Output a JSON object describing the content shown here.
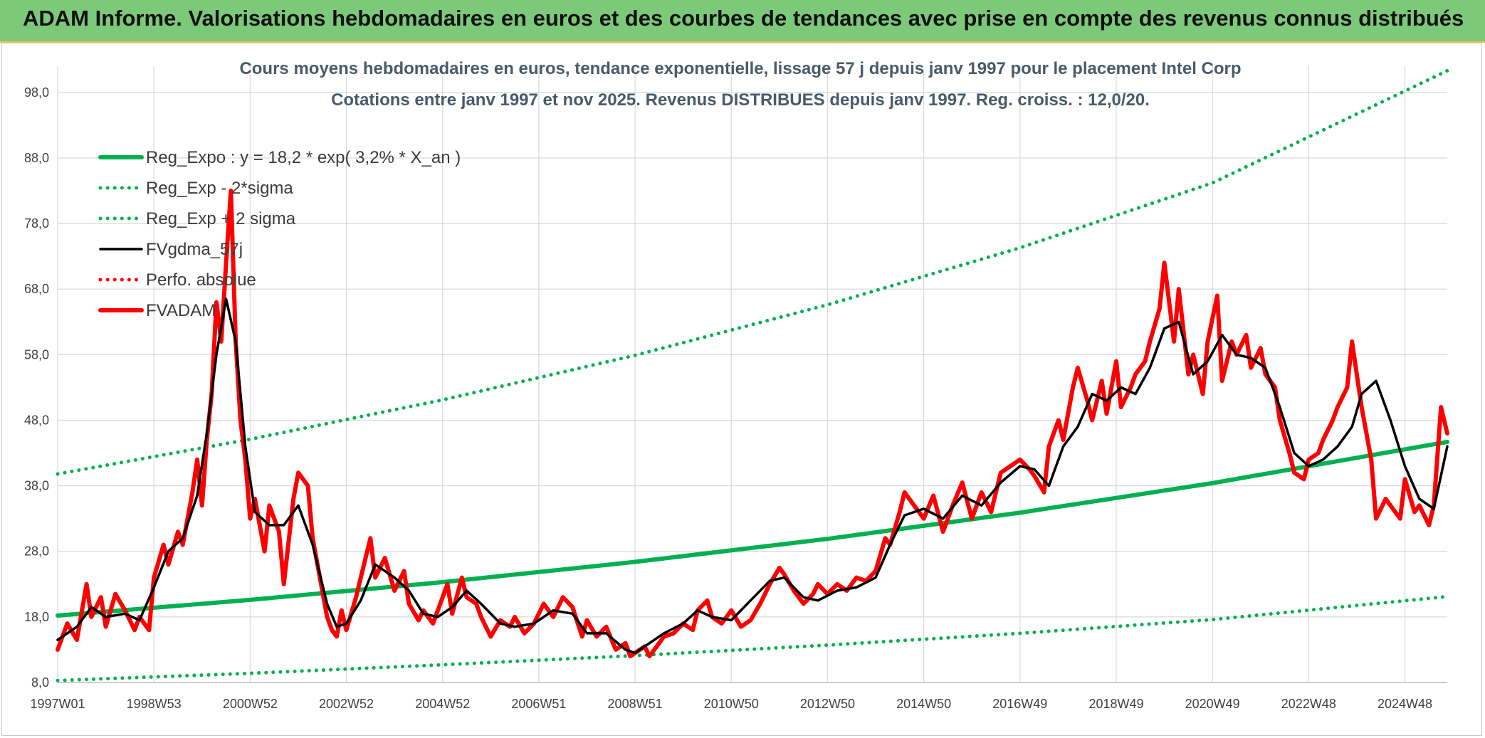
{
  "header": {
    "title": "ADAM Informe. Valorisations hebdomadaires en euros et des courbes de tendances avec prise en compte des revenus connus distribués"
  },
  "chart_data": {
    "type": "line",
    "title": "Cours moyens hebdomadaires en euros, tendance exponentielle, lissage 57 j depuis janv 1997 pour le placement Intel Corp",
    "subtitle": "Cotations entre janv 1997 et nov 2025. Revenus DISTRIBUES depuis janv 1997. Reg. croiss. : 12,0/20.",
    "xlabel": "",
    "ylabel": "",
    "x_range": [
      1997.0,
      2025.88
    ],
    "ylim": [
      8,
      102
    ],
    "y_ticks": [
      8,
      18,
      28,
      38,
      48,
      58,
      68,
      78,
      88,
      98
    ],
    "y_tick_labels": [
      "8,0",
      "18,0",
      "28,0",
      "38,0",
      "48,0",
      "58,0",
      "68,0",
      "78,0",
      "88,0",
      "98,0"
    ],
    "x_tick_labels": [
      "1997W01",
      "1998W53",
      "2000W52",
      "2002W52",
      "2004W52",
      "2006W51",
      "2008W51",
      "2010W50",
      "2012W50",
      "2014W50",
      "2016W49",
      "2018W49",
      "2020W49",
      "2022W48",
      "2024W48"
    ],
    "x_tick_years": [
      1997.0,
      1999.0,
      2001.0,
      2003.0,
      2005.0,
      2007.0,
      2009.0,
      2011.0,
      2013.0,
      2015.0,
      2017.0,
      2019.0,
      2021.0,
      2023.0,
      2025.0
    ],
    "grid": true,
    "legend_position": "top-left",
    "series": [
      {
        "name": "Reg_Expo : y = 18,2 * exp( 3,2% *  X_an )",
        "color": "#00b050",
        "style": "solid-thick",
        "x": [
          1997.0,
          2001.0,
          2005.0,
          2009.0,
          2013.0,
          2017.0,
          2021.0,
          2025.88
        ],
        "values": [
          18.2,
          20.6,
          23.3,
          26.4,
          29.9,
          33.9,
          38.4,
          44.7
        ]
      },
      {
        "name": "Reg_Exp - 2*sigma",
        "color": "#00b050",
        "style": "dotted",
        "x": [
          1997.0,
          2001.0,
          2005.0,
          2009.0,
          2013.0,
          2017.0,
          2021.0,
          2025.88
        ],
        "values": [
          8.3,
          9.4,
          10.7,
          12.1,
          13.7,
          15.5,
          17.6,
          21.1
        ]
      },
      {
        "name": "Reg_Exp + 2 sigma",
        "color": "#00b050",
        "style": "dotted",
        "x": [
          1997.0,
          2001.0,
          2005.0,
          2009.0,
          2013.0,
          2017.0,
          2021.0,
          2025.88
        ],
        "values": [
          39.8,
          45.1,
          51.1,
          57.9,
          65.6,
          74.3,
          84.2,
          101.3
        ]
      },
      {
        "name": "FVgdma_57j",
        "color": "#000000",
        "style": "solid",
        "x": [
          1997.0,
          1997.4,
          1997.7,
          1998.0,
          1998.4,
          1998.7,
          1999.0,
          1999.3,
          1999.6,
          1999.9,
          2000.1,
          2000.3,
          2000.5,
          2000.7,
          2000.9,
          2001.1,
          2001.4,
          2001.7,
          2002.0,
          2002.3,
          2002.6,
          2002.8,
          2003.0,
          2003.3,
          2003.6,
          2004.0,
          2004.3,
          2004.6,
          2004.9,
          2005.2,
          2005.5,
          2005.8,
          2006.2,
          2006.5,
          2006.9,
          2007.3,
          2007.7,
          2008.0,
          2008.4,
          2008.8,
          2009.0,
          2009.3,
          2009.6,
          2010.0,
          2010.3,
          2010.6,
          2011.0,
          2011.4,
          2011.8,
          2012.1,
          2012.5,
          2012.8,
          2013.2,
          2013.6,
          2014.0,
          2014.3,
          2014.6,
          2015.0,
          2015.4,
          2015.8,
          2016.2,
          2016.6,
          2017.0,
          2017.3,
          2017.6,
          2017.9,
          2018.2,
          2018.5,
          2018.8,
          2019.1,
          2019.4,
          2019.7,
          2020.0,
          2020.3,
          2020.6,
          2020.9,
          2021.2,
          2021.5,
          2021.8,
          2022.1,
          2022.4,
          2022.7,
          2023.0,
          2023.3,
          2023.6,
          2023.9,
          2024.1,
          2024.4,
          2024.7,
          2025.0,
          2025.3,
          2025.6,
          2025.88
        ],
        "values": [
          14.5,
          16.5,
          19.5,
          18.0,
          18.5,
          17.5,
          22.5,
          28.0,
          30.0,
          36.5,
          46.0,
          58.0,
          66.5,
          60.0,
          44.0,
          34.0,
          32.0,
          32.0,
          35.0,
          29.0,
          20.0,
          16.5,
          17.0,
          20.5,
          26.0,
          24.0,
          22.0,
          18.5,
          18.0,
          19.5,
          22.0,
          20.0,
          17.0,
          16.5,
          17.0,
          19.0,
          18.5,
          15.5,
          15.5,
          13.0,
          12.5,
          14.0,
          15.5,
          17.0,
          19.0,
          18.0,
          17.5,
          20.5,
          23.5,
          24.0,
          21.0,
          20.5,
          22.0,
          22.5,
          24.0,
          29.0,
          33.5,
          34.5,
          33.0,
          36.5,
          35.0,
          38.5,
          41.0,
          40.5,
          38.0,
          44.0,
          47.0,
          52.0,
          51.0,
          53.0,
          52.0,
          56.0,
          62.0,
          63.0,
          55.0,
          57.0,
          61.0,
          58.0,
          57.5,
          56.0,
          50.0,
          43.0,
          41.0,
          42.0,
          44.0,
          47.0,
          52.0,
          54.0,
          48.0,
          41.0,
          36.0,
          34.5,
          44.0
        ]
      },
      {
        "name": "Perfo. absolue",
        "color": "#ff0000",
        "style": "dotted",
        "x": [],
        "values": []
      },
      {
        "name": "FVADAM",
        "color": "#ff0000",
        "style": "solid-thick",
        "x": [
          1997.0,
          1997.2,
          1997.4,
          1997.6,
          1997.7,
          1997.9,
          1998.0,
          1998.2,
          1998.4,
          1998.6,
          1998.7,
          1998.9,
          1999.0,
          1999.2,
          1999.3,
          1999.5,
          1999.6,
          1999.8,
          1999.9,
          2000.0,
          2000.1,
          2000.2,
          2000.3,
          2000.4,
          2000.5,
          2000.6,
          2000.7,
          2000.8,
          2000.9,
          2001.0,
          2001.1,
          2001.3,
          2001.4,
          2001.6,
          2001.7,
          2001.9,
          2002.0,
          2002.2,
          2002.3,
          2002.5,
          2002.6,
          2002.7,
          2002.8,
          2002.9,
          2003.0,
          2003.2,
          2003.3,
          2003.5,
          2003.6,
          2003.8,
          2004.0,
          2004.2,
          2004.3,
          2004.5,
          2004.6,
          2004.8,
          2004.9,
          2005.1,
          2005.2,
          2005.4,
          2005.5,
          2005.7,
          2005.8,
          2006.0,
          2006.2,
          2006.4,
          2006.5,
          2006.7,
          2006.9,
          2007.1,
          2007.3,
          2007.5,
          2007.7,
          2007.9,
          2008.0,
          2008.2,
          2008.4,
          2008.6,
          2008.8,
          2008.9,
          2009.0,
          2009.2,
          2009.3,
          2009.5,
          2009.6,
          2009.8,
          2010.0,
          2010.2,
          2010.3,
          2010.5,
          2010.6,
          2010.8,
          2011.0,
          2011.2,
          2011.4,
          2011.6,
          2011.8,
          2012.0,
          2012.1,
          2012.3,
          2012.5,
          2012.7,
          2012.8,
          2013.0,
          2013.2,
          2013.4,
          2013.6,
          2013.8,
          2014.0,
          2014.2,
          2014.3,
          2014.5,
          2014.6,
          2014.8,
          2015.0,
          2015.2,
          2015.4,
          2015.6,
          2015.8,
          2016.0,
          2016.2,
          2016.4,
          2016.6,
          2016.8,
          2017.0,
          2017.2,
          2017.3,
          2017.5,
          2017.6,
          2017.8,
          2017.9,
          2018.1,
          2018.2,
          2018.4,
          2018.5,
          2018.7,
          2018.8,
          2019.0,
          2019.1,
          2019.3,
          2019.4,
          2019.6,
          2019.7,
          2019.9,
          2020.0,
          2020.2,
          2020.3,
          2020.5,
          2020.6,
          2020.8,
          2020.9,
          2021.1,
          2021.2,
          2021.4,
          2021.5,
          2021.7,
          2021.8,
          2022.0,
          2022.1,
          2022.3,
          2022.4,
          2022.6,
          2022.7,
          2022.9,
          2023.0,
          2023.2,
          2023.3,
          2023.5,
          2023.6,
          2023.8,
          2023.9,
          2024.0,
          2024.1,
          2024.3,
          2024.4,
          2024.6,
          2024.7,
          2024.9,
          2025.0,
          2025.2,
          2025.3,
          2025.5,
          2025.6,
          2025.75,
          2025.88
        ],
        "values": [
          13.0,
          17.0,
          14.5,
          23.0,
          18.0,
          21.0,
          16.5,
          21.5,
          19.0,
          16.0,
          18.0,
          16.0,
          24.0,
          29.0,
          26.0,
          31.0,
          29.0,
          37.0,
          42.0,
          35.0,
          45.0,
          52.0,
          66.0,
          60.0,
          72.0,
          83.0,
          60.0,
          48.0,
          42.0,
          33.0,
          36.0,
          28.0,
          35.0,
          31.0,
          23.0,
          36.0,
          40.0,
          38.0,
          30.0,
          22.0,
          18.0,
          16.0,
          15.0,
          19.0,
          16.0,
          21.0,
          24.0,
          30.0,
          24.0,
          27.0,
          22.0,
          25.0,
          20.0,
          17.5,
          19.0,
          17.0,
          19.0,
          23.0,
          18.5,
          24.0,
          21.0,
          20.0,
          18.0,
          15.0,
          17.5,
          16.5,
          18.0,
          15.5,
          17.0,
          20.0,
          18.0,
          21.0,
          19.5,
          15.0,
          17.5,
          15.0,
          16.5,
          13.0,
          14.0,
          12.0,
          12.5,
          13.5,
          12.0,
          14.0,
          15.0,
          15.5,
          17.0,
          16.0,
          19.0,
          20.5,
          18.0,
          17.0,
          19.0,
          16.5,
          17.5,
          20.0,
          23.0,
          25.5,
          24.5,
          22.0,
          20.0,
          21.5,
          23.0,
          21.5,
          23.0,
          22.0,
          24.0,
          23.5,
          25.0,
          30.0,
          29.0,
          34.0,
          37.0,
          35.0,
          33.0,
          36.5,
          31.0,
          35.0,
          38.5,
          33.0,
          37.0,
          34.0,
          40.0,
          41.0,
          42.0,
          40.5,
          39.5,
          37.0,
          44.0,
          48.0,
          45.0,
          53.0,
          56.0,
          51.0,
          48.0,
          54.0,
          49.0,
          57.0,
          50.0,
          53.0,
          55.0,
          57.0,
          60.0,
          65.0,
          72.0,
          60.0,
          68.0,
          55.0,
          58.0,
          52.0,
          60.0,
          67.0,
          54.0,
          60.0,
          58.0,
          61.0,
          56.0,
          59.0,
          55.0,
          53.0,
          48.0,
          43.0,
          40.0,
          39.0,
          42.0,
          43.0,
          45.0,
          48.0,
          50.0,
          53.0,
          60.0,
          55.0,
          50.0,
          42.0,
          33.0,
          36.0,
          35.0,
          33.0,
          39.0,
          34.0,
          35.0,
          32.0,
          35.0,
          50.0,
          46.0
        ]
      }
    ]
  }
}
